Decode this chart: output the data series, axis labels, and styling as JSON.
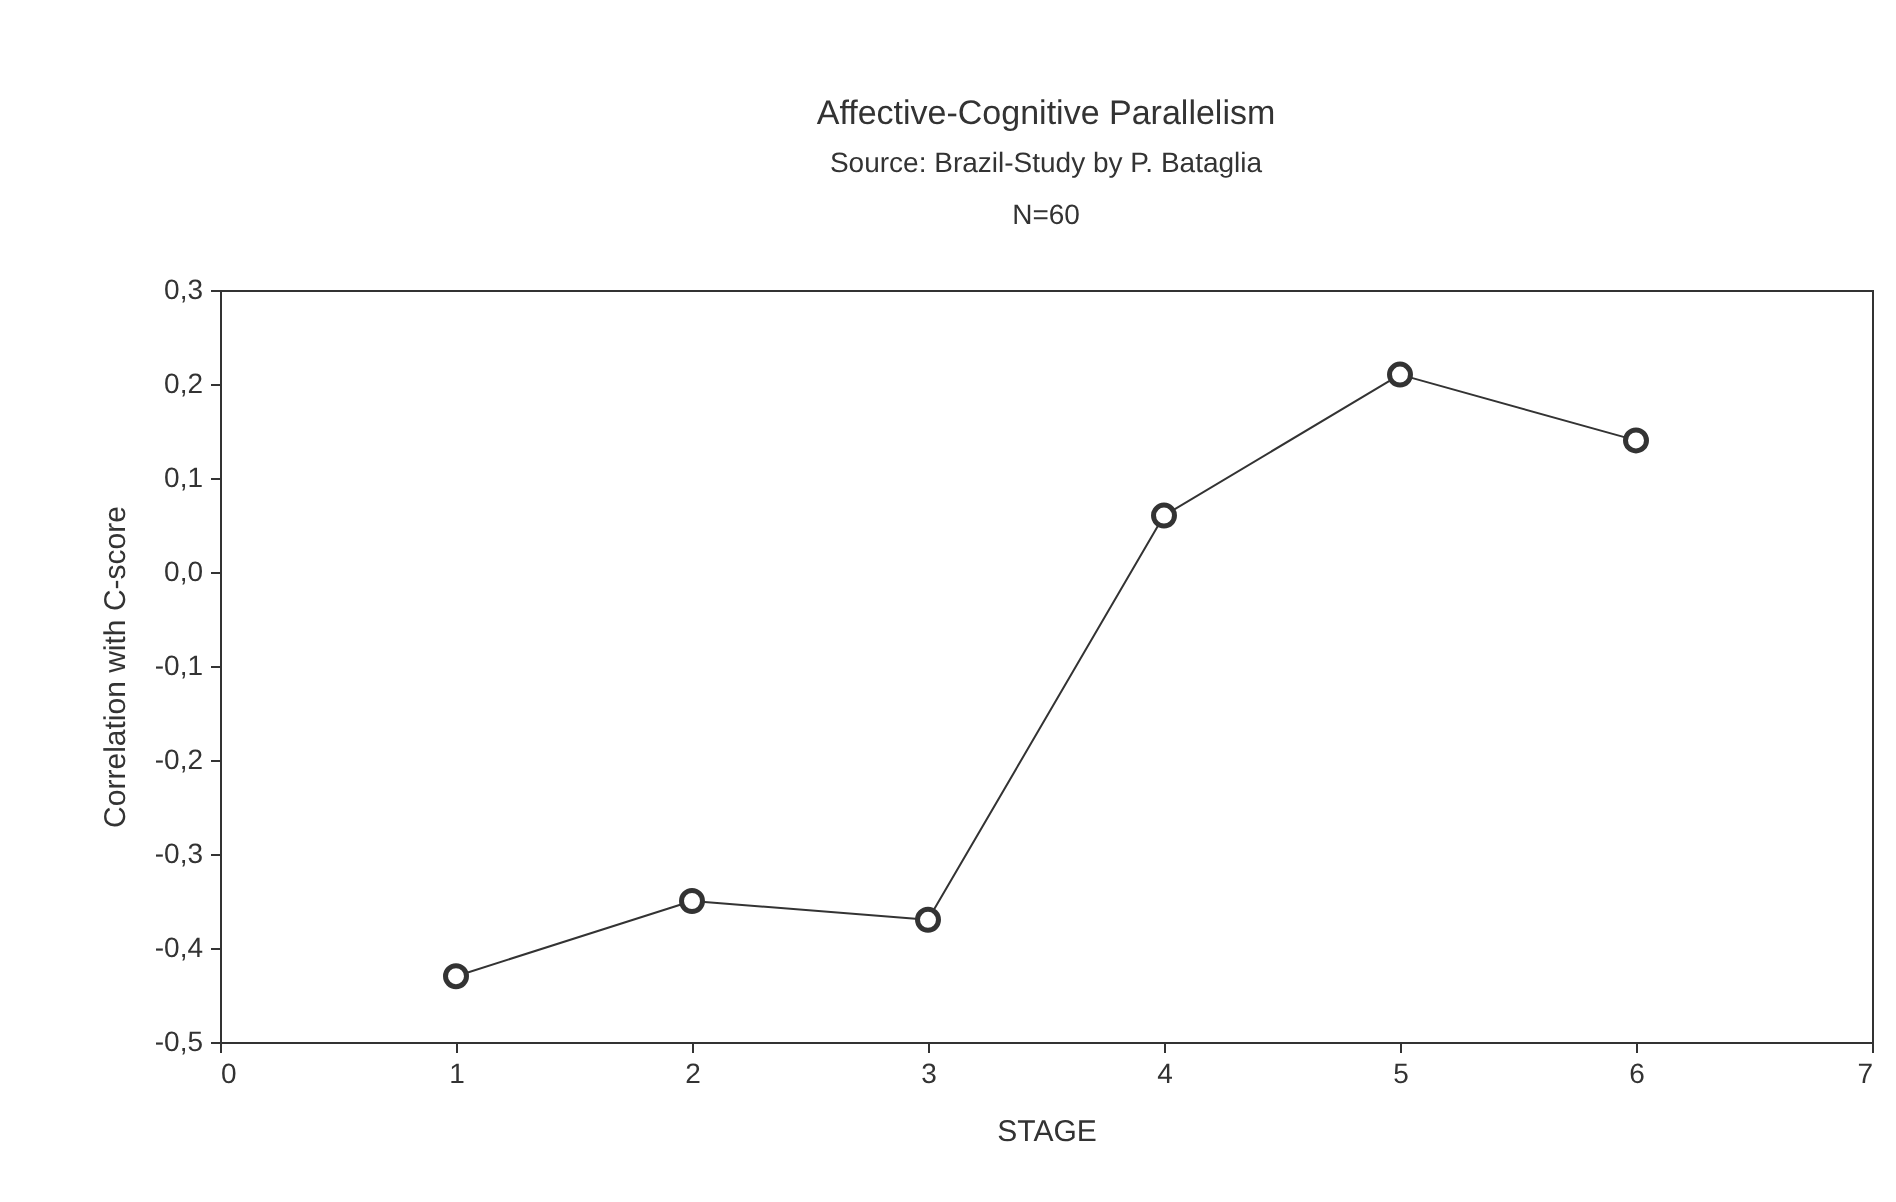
{
  "chart_data": {
    "type": "line",
    "title": "Affective-Cognitive Parallelism",
    "subtitle": "Source: Brazil-Study by P. Bataglia",
    "annotations": [
      "N=60"
    ],
    "xlabel": "STAGE",
    "ylabel": "Correlation with C-score",
    "x": [
      1,
      2,
      3,
      4,
      5,
      6
    ],
    "series": [
      {
        "color": "#333333",
        "values": [
          -0.43,
          -0.35,
          -0.37,
          0.06,
          0.21,
          0.14
        ]
      }
    ],
    "xlim": [
      0,
      7
    ],
    "xticks": [
      0,
      1,
      2,
      3,
      4,
      5,
      6,
      7
    ],
    "ylim": [
      -0.5,
      0.3
    ],
    "yticks": [
      {
        "value": -0.5,
        "label": "-0,5"
      },
      {
        "value": -0.4,
        "label": "-0,4"
      },
      {
        "value": -0.3,
        "label": "-0,3"
      },
      {
        "value": -0.2,
        "label": "-0,2"
      },
      {
        "value": -0.1,
        "label": "-0,1"
      },
      {
        "value": 0,
        "label": "0,0"
      },
      {
        "value": 0.1,
        "label": "0,1"
      },
      {
        "value": 0.2,
        "label": "0,2"
      },
      {
        "value": 0.3,
        "label": "0,3"
      }
    ],
    "grid": false,
    "legend": false,
    "marker": "circle",
    "line_style": "solid"
  }
}
